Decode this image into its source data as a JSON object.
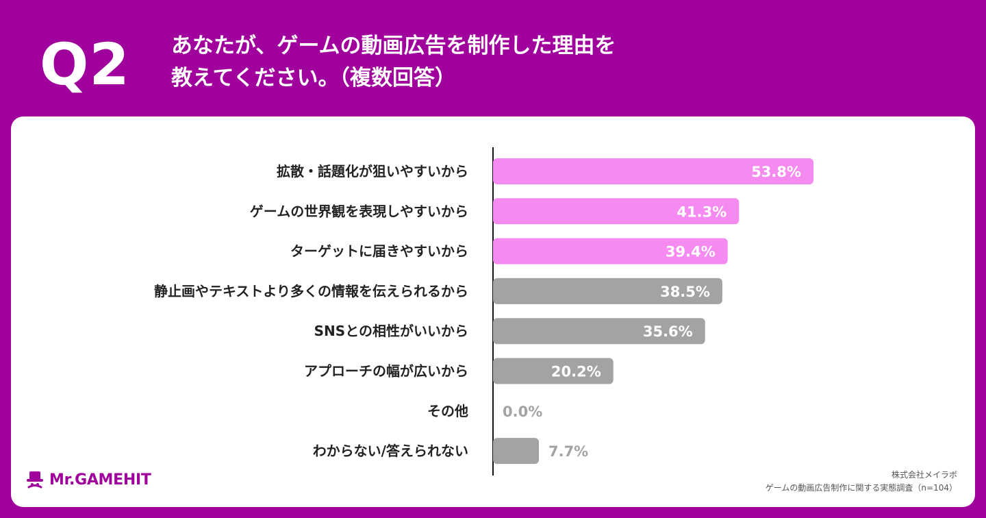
{
  "header": {
    "question_number": "Q2",
    "title_line1": "あなたが、ゲームの動画広告を制作した理由を",
    "title_line2": "教えてください。（複数回答）"
  },
  "colors": {
    "background": "#a0009b",
    "highlight_bar": "#f58af0",
    "other_bar": "#a3a3a3",
    "zero_value_text": "#a3a3a3",
    "label_text": "#222222",
    "brand": "#a0009b"
  },
  "chart_data": {
    "type": "bar",
    "orientation": "horizontal",
    "categories": [
      "拡散・話題化が狙いやすいから",
      "ゲームの世界観を表現しやすいから",
      "ターゲットに届きやすいから",
      "静止画やテキストより多くの情報を伝えられるから",
      "SNSとの相性がいいから",
      "アプローチの幅が広いから",
      "その他",
      "わからない/答えられない"
    ],
    "values": [
      53.8,
      41.3,
      39.4,
      38.5,
      35.6,
      20.2,
      0.0,
      7.7
    ],
    "value_labels": [
      "53.8%",
      "41.3%",
      "39.4%",
      "38.5%",
      "35.6%",
      "20.2%",
      "0.0%",
      "7.7%"
    ],
    "highlight": [
      true,
      true,
      true,
      false,
      false,
      false,
      false,
      false
    ],
    "xlim": [
      0,
      100
    ],
    "title": "",
    "xlabel": "",
    "ylabel": "",
    "grid": false
  },
  "footer": {
    "logo_text": "Mr.GAMEHIT",
    "source_line1": "株式会社メイラボ",
    "source_line2": "ゲームの動画広告制作に関する実態調査（n=104）"
  }
}
